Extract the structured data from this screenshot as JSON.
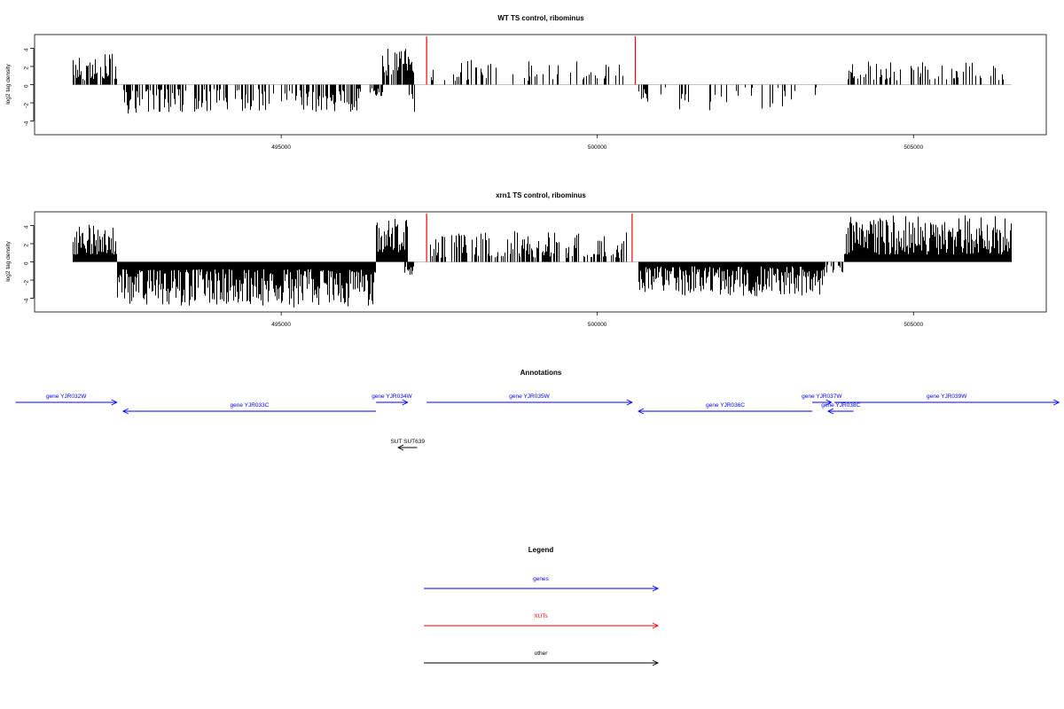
{
  "chart_data": [
    {
      "type": "bar",
      "title": "WT TS control, ribominus",
      "ylabel": "log2 tag density",
      "xlabel": "",
      "xlim": [
        491100,
        507100
      ],
      "ylim": [
        -5.5,
        5.5
      ],
      "x_ticks": [
        495000,
        500000,
        505000
      ],
      "x_tick_labels": [
        "495000",
        "500000",
        "505000"
      ],
      "y_ticks": [
        4,
        2,
        0,
        -2,
        -4
      ],
      "y_tick_labels": [
        "4",
        "2",
        "0",
        "-2",
        "-4"
      ],
      "grid": false,
      "markers": [
        {
          "x": 497300,
          "color": "#ff0000"
        },
        {
          "x": 500600,
          "color": "#ff0000"
        }
      ],
      "segments": [
        {
          "x0": 491700,
          "x1": 492400,
          "sign": 1,
          "min": 0.5,
          "max": 3.4,
          "density": 0.7
        },
        {
          "x0": 492500,
          "x1": 493100,
          "sign": -1,
          "min": 0.5,
          "max": 3.2,
          "density": 0.6
        },
        {
          "x0": 493100,
          "x1": 495300,
          "sign": -1,
          "min": 0.5,
          "max": 3.0,
          "density": 0.45
        },
        {
          "x0": 495300,
          "x1": 496200,
          "sign": -1,
          "min": 0.6,
          "max": 3.3,
          "density": 0.6
        },
        {
          "x0": 496200,
          "x1": 496600,
          "sign": -1,
          "min": 0.4,
          "max": 1.5,
          "density": 0.4
        },
        {
          "x0": 496600,
          "x1": 497100,
          "sign": 1,
          "min": 1.0,
          "max": 4.0,
          "density": 0.8
        },
        {
          "x0": 497000,
          "x1": 497150,
          "sign": -1,
          "min": 1.0,
          "max": 3.3,
          "density": 0.4
        },
        {
          "x0": 497350,
          "x1": 500450,
          "sign": 1,
          "min": 0.4,
          "max": 2.8,
          "density": 0.22
        },
        {
          "x0": 500650,
          "x1": 500800,
          "sign": -1,
          "min": 0.4,
          "max": 2.2,
          "density": 0.7
        },
        {
          "x0": 501000,
          "x1": 503600,
          "sign": -1,
          "min": 0.3,
          "max": 2.9,
          "density": 0.18
        },
        {
          "x0": 503900,
          "x1": 506500,
          "sign": 1,
          "min": 0.4,
          "max": 2.6,
          "density": 0.3
        }
      ]
    },
    {
      "type": "bar",
      "title": "xrn1 TS control, ribominus",
      "ylabel": "log2 tag density",
      "xlabel": "",
      "xlim": [
        491100,
        507100
      ],
      "ylim": [
        -5.5,
        5.5
      ],
      "x_ticks": [
        495000,
        500000,
        505000
      ],
      "x_tick_labels": [
        "495000",
        "500000",
        "505000"
      ],
      "y_ticks": [
        4,
        2,
        0,
        -2,
        -4
      ],
      "y_tick_labels": [
        "4",
        "2",
        "0",
        "-2",
        "-4"
      ],
      "grid": false,
      "markers": [
        {
          "x": 497300,
          "color": "#ff0000"
        },
        {
          "x": 500550,
          "color": "#ff0000"
        }
      ],
      "segments": [
        {
          "x0": 491700,
          "x1": 492400,
          "sign": 1,
          "min": 0.8,
          "max": 4.2,
          "density": 1.4
        },
        {
          "x0": 492400,
          "x1": 495000,
          "sign": -1,
          "min": 0.8,
          "max": 4.8,
          "density": 1.5
        },
        {
          "x0": 495000,
          "x1": 496500,
          "sign": -1,
          "min": 0.8,
          "max": 5.0,
          "density": 1.5
        },
        {
          "x0": 496500,
          "x1": 497000,
          "sign": 1,
          "min": 1.0,
          "max": 5.2,
          "density": 1.6
        },
        {
          "x0": 496950,
          "x1": 497100,
          "sign": -1,
          "min": 0.5,
          "max": 1.5,
          "density": 0.6
        },
        {
          "x0": 497350,
          "x1": 500450,
          "sign": 1,
          "min": 0.4,
          "max": 3.5,
          "density": 0.55
        },
        {
          "x0": 500650,
          "x1": 503600,
          "sign": -1,
          "min": 0.5,
          "max": 3.8,
          "density": 1.0
        },
        {
          "x0": 503600,
          "x1": 503900,
          "sign": -1,
          "min": 0.3,
          "max": 1.2,
          "density": 0.5
        },
        {
          "x0": 503900,
          "x1": 506550,
          "sign": 1,
          "min": 0.8,
          "max": 5.2,
          "density": 1.6
        }
      ]
    }
  ],
  "annotations": {
    "title": "Annotations",
    "xlim": [
      491100,
      507100
    ],
    "items": [
      {
        "label": "gene YJR032W",
        "x0": 490800,
        "x1": 492400,
        "row": 0,
        "dir": "right",
        "color": "#0000ff"
      },
      {
        "label": "gene YJR033C",
        "x0": 492500,
        "x1": 496500,
        "row": 1,
        "dir": "left",
        "color": "#0000ff"
      },
      {
        "label": "gene YJR034W",
        "x0": 496500,
        "x1": 497000,
        "row": 0,
        "dir": "right",
        "color": "#0000ff"
      },
      {
        "label": "gene YJR035W",
        "x0": 497300,
        "x1": 500550,
        "row": 0,
        "dir": "right",
        "color": "#0000ff"
      },
      {
        "label": "gene YJR036C",
        "x0": 500650,
        "x1": 503400,
        "row": 1,
        "dir": "left",
        "color": "#0000ff"
      },
      {
        "label": "gene YJR037W",
        "x0": 503400,
        "x1": 503700,
        "row": 0,
        "dir": "right",
        "color": "#0000ff"
      },
      {
        "label": "gene YJR038C",
        "x0": 503650,
        "x1": 504050,
        "row": 1,
        "dir": "left",
        "color": "#0000ff"
      },
      {
        "label": "gene YJR039W",
        "x0": 503750,
        "x1": 507300,
        "row": 0,
        "dir": "right",
        "color": "#0000ff"
      },
      {
        "label": "SUT SUT639",
        "x0": 496850,
        "x1": 497150,
        "row": 2,
        "dir": "left",
        "color": "#000000"
      }
    ]
  },
  "legend": {
    "title": "Legend",
    "items": [
      {
        "label": "genes",
        "color": "#0000ff"
      },
      {
        "label": "XUTs",
        "color": "#ff0000"
      },
      {
        "label": "other",
        "color": "#000000"
      }
    ]
  }
}
